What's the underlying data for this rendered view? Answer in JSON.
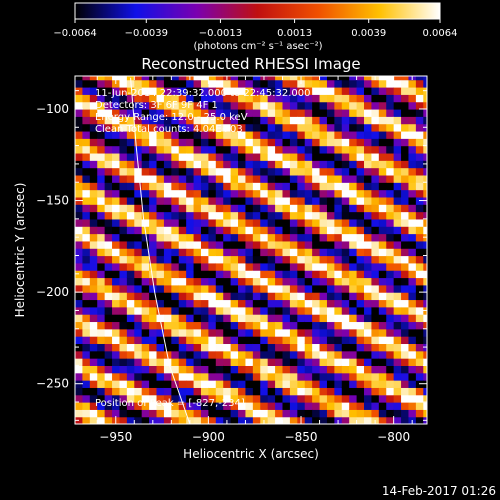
{
  "chart_data": {
    "type": "heatmap",
    "title": "Reconstructed RHESSI Image",
    "xlabel": "Heliocentric X (arcsec)",
    "ylabel": "Heliocentric Y (arcsec)",
    "xlim": [
      -972,
      -782
    ],
    "ylim": [
      -272,
      -82
    ],
    "x_ticks": [
      -950,
      -900,
      -850,
      -800
    ],
    "x_tick_labels": [
      "−950",
      "−900",
      "−850",
      "−800"
    ],
    "y_ticks": [
      -250,
      -200,
      -150,
      -100
    ],
    "y_tick_labels": [
      "−250",
      "−200",
      "−150",
      "−100"
    ],
    "colorbar": {
      "min": -0.0064,
      "max": 0.0064,
      "ticks": [
        -0.0064,
        -0.0039,
        -0.0013,
        0.0013,
        0.0039,
        0.0064
      ],
      "tick_labels": [
        "−0.0064",
        "−0.0039",
        "−0.0013",
        "0.0013",
        "0.0039",
        "0.0064"
      ],
      "units": "(photons cm⁻² s⁻¹ asec⁻²)",
      "colormap": [
        "#000000",
        "#1010e8",
        "#7a00b0",
        "#c01010",
        "#f05000",
        "#ffc000",
        "#ffffff"
      ]
    },
    "pattern": "diagonal stripes (pixel size ~4 arcsec)",
    "annotations": [
      "11-Jun-2014 22:39:32.000 to 22:45:32.000",
      "Detectors: 3F 6F 9F   4F 1",
      "Energy Range: 12.0 - 25.0 keV",
      "Clean   Total counts: 4.04E+03",
      "Position of Peak = [-827,-234]"
    ],
    "limb_curve": {
      "color": "#ffffff",
      "points": [
        [
          -942,
          -83
        ],
        [
          -939,
          -120
        ],
        [
          -935,
          -160
        ],
        [
          -929,
          -200
        ],
        [
          -921,
          -240
        ],
        [
          -910,
          -272
        ]
      ]
    },
    "timestamp": "14-Feb-2017 01:26"
  }
}
